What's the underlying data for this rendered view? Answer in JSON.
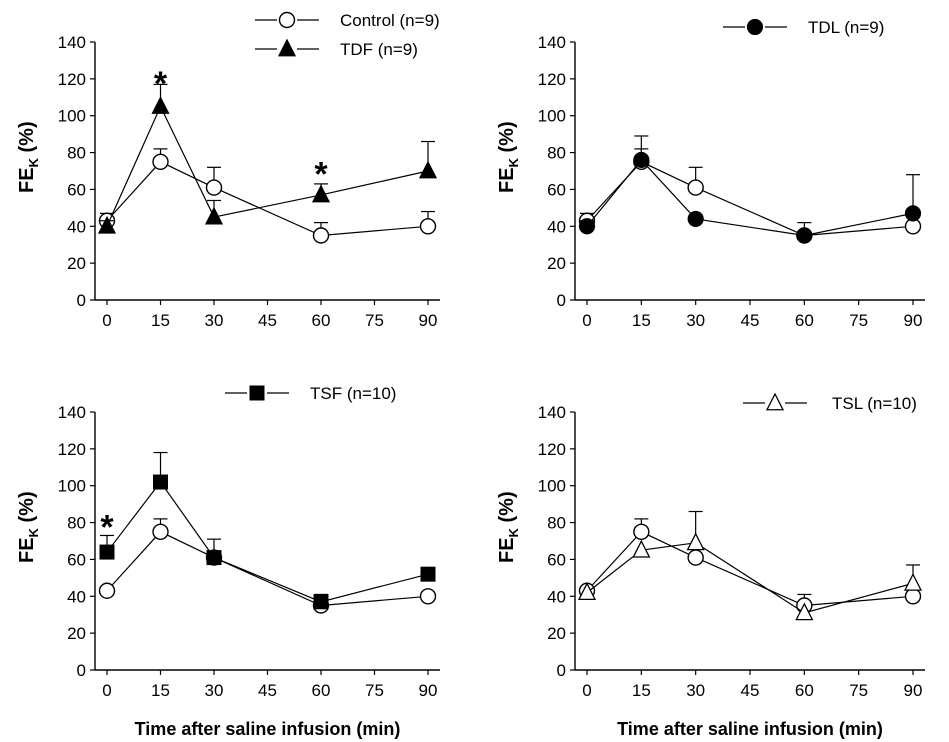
{
  "figure": {
    "xlabel": "Time after saline infusion (min)",
    "ylabel_main": "FE",
    "ylabel_sub": "K",
    "ylabel_unit": " (%)"
  },
  "chart_data": [
    {
      "type": "line",
      "panel": "top-left",
      "xlabel": "",
      "ylabel": "FEK (%)",
      "xlim": [
        0,
        90
      ],
      "ylim": [
        0,
        140
      ],
      "xticks": [
        "0",
        "15",
        "30",
        "45",
        "60",
        "75",
        "90"
      ],
      "yticks": [
        "0",
        "20",
        "40",
        "60",
        "80",
        "100",
        "120",
        "140"
      ],
      "grid": false,
      "legend_position": "top",
      "series": [
        {
          "name": "Control",
          "n_label": "(n=9)",
          "marker": "circle-open",
          "x": [
            0,
            15,
            30,
            60,
            90
          ],
          "y": [
            43,
            75,
            61,
            35,
            40
          ],
          "err": [
            4,
            7,
            11,
            7,
            8
          ]
        },
        {
          "name": "TDF",
          "n_label": "(n=9)",
          "marker": "triangle-filled",
          "x": [
            0,
            15,
            30,
            60,
            90
          ],
          "y": [
            40,
            105,
            45,
            57,
            70
          ],
          "err": [
            3,
            12,
            9,
            6,
            16
          ]
        }
      ],
      "annotations": [
        {
          "text": "*",
          "x": 15,
          "y": 121
        },
        {
          "text": "*",
          "x": 60,
          "y": 72
        }
      ]
    },
    {
      "type": "line",
      "panel": "top-right",
      "xlabel": "",
      "ylabel": "FEK (%)",
      "xlim": [
        0,
        90
      ],
      "ylim": [
        0,
        140
      ],
      "xticks": [
        "0",
        "15",
        "30",
        "45",
        "60",
        "75",
        "90"
      ],
      "yticks": [
        "0",
        "20",
        "40",
        "60",
        "80",
        "100",
        "120",
        "140"
      ],
      "grid": false,
      "legend_position": "top-right",
      "series": [
        {
          "name": "Control",
          "n_label": "",
          "marker": "circle-open",
          "legend": false,
          "x": [
            0,
            15,
            30,
            60,
            90
          ],
          "y": [
            43,
            75,
            61,
            35,
            40
          ],
          "err": [
            4,
            7,
            11,
            7,
            0
          ]
        },
        {
          "name": "TDL",
          "n_label": "(n=9)",
          "marker": "circle-filled",
          "x": [
            0,
            15,
            30,
            60,
            90
          ],
          "y": [
            40,
            76,
            44,
            35,
            47
          ],
          "err": [
            3,
            13,
            0,
            0,
            21
          ]
        }
      ],
      "annotations": []
    },
    {
      "type": "line",
      "panel": "bottom-left",
      "xlabel": "Time after saline infusion (min)",
      "ylabel": "FEK (%)",
      "xlim": [
        0,
        90
      ],
      "ylim": [
        0,
        140
      ],
      "xticks": [
        "0",
        "15",
        "30",
        "45",
        "60",
        "75",
        "90"
      ],
      "yticks": [
        "0",
        "20",
        "40",
        "60",
        "80",
        "100",
        "120",
        "140"
      ],
      "grid": false,
      "legend_position": "top",
      "series": [
        {
          "name": "Control",
          "n_label": "",
          "marker": "circle-open",
          "legend": false,
          "x": [
            0,
            15,
            30,
            60,
            90
          ],
          "y": [
            43,
            75,
            61,
            35,
            40
          ],
          "err": [
            0,
            7,
            0,
            5,
            0
          ]
        },
        {
          "name": "TSF",
          "n_label": "(n=10)",
          "marker": "square-filled",
          "x": [
            0,
            15,
            30,
            60,
            90
          ],
          "y": [
            64,
            102,
            61,
            37,
            52
          ],
          "err": [
            9,
            16,
            10,
            4,
            0
          ]
        }
      ],
      "annotations": [
        {
          "text": "*",
          "x": 0,
          "y": 81
        }
      ]
    },
    {
      "type": "line",
      "panel": "bottom-right",
      "xlabel": "Time after saline infusion (min)",
      "ylabel": "FEK (%)",
      "xlim": [
        0,
        90
      ],
      "ylim": [
        0,
        140
      ],
      "xticks": [
        "0",
        "15",
        "30",
        "45",
        "60",
        "75",
        "90"
      ],
      "yticks": [
        "0",
        "20",
        "40",
        "60",
        "80",
        "100",
        "120",
        "140"
      ],
      "grid": false,
      "legend_position": "top-right",
      "series": [
        {
          "name": "Control",
          "n_label": "",
          "marker": "circle-open",
          "legend": false,
          "x": [
            0,
            15,
            30,
            60,
            90
          ],
          "y": [
            43,
            75,
            61,
            35,
            40
          ],
          "err": [
            0,
            7,
            0,
            6,
            0
          ]
        },
        {
          "name": "TSL",
          "n_label": "(n=10)",
          "marker": "triangle-open",
          "x": [
            0,
            15,
            30,
            60,
            90
          ],
          "y": [
            42,
            65,
            69,
            31,
            47
          ],
          "err": [
            0,
            0,
            17,
            0,
            10
          ]
        }
      ],
      "annotations": []
    }
  ]
}
